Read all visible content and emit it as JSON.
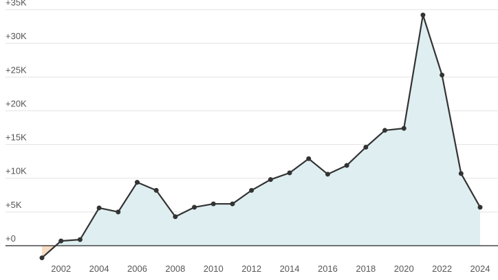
{
  "chart_data": {
    "type": "area-line",
    "x": [
      2001,
      2002,
      2003,
      2004,
      2005,
      2006,
      2007,
      2008,
      2009,
      2010,
      2011,
      2012,
      2013,
      2014,
      2015,
      2016,
      2017,
      2018,
      2019,
      2020,
      2021,
      2022,
      2023,
      2024
    ],
    "values": [
      -1800,
      700,
      900,
      5600,
      5000,
      9400,
      8200,
      4300,
      5700,
      6200,
      6200,
      8200,
      9800,
      10800,
      12900,
      10600,
      11900,
      14600,
      17100,
      17400,
      34200,
      25300,
      10700,
      5700
    ],
    "color": "#333333",
    "fill_positive": "#dfeef1",
    "fill_negative": "#f6dcc3",
    "xlim": [
      2001,
      2024
    ],
    "xticks": [
      2002,
      2004,
      2006,
      2008,
      2010,
      2012,
      2014,
      2016,
      2018,
      2020,
      2022,
      2024
    ],
    "ylim": [
      0,
      35000
    ],
    "yticks": [
      {
        "value": 0,
        "label": "+0"
      },
      {
        "value": 5000,
        "label": "+5K"
      },
      {
        "value": 10000,
        "label": "+10K"
      },
      {
        "value": 15000,
        "label": "+15K"
      },
      {
        "value": 20000,
        "label": "+20K"
      },
      {
        "value": 25000,
        "label": "+25K"
      },
      {
        "value": 30000,
        "label": "+30K"
      },
      {
        "value": 35000,
        "label": "+35K"
      }
    ],
    "grid": true
  }
}
